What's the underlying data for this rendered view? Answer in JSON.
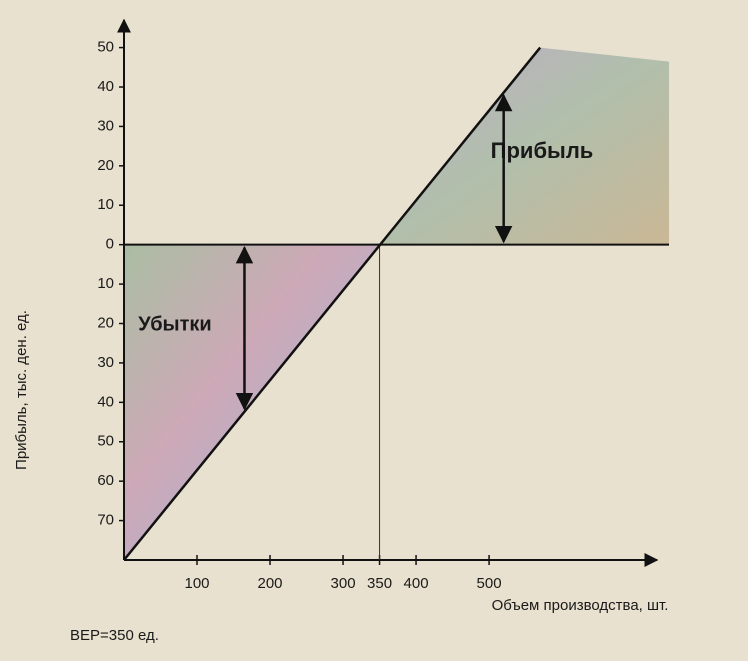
{
  "chart_data": {
    "type": "line",
    "y_label": "Прибыль, тыс. ден. ед.",
    "x_label": "Объем производства, шт.",
    "annotations": [
      "Прибыль",
      "Убытки",
      "BEP=350 ед."
    ],
    "x": [
      0,
      570
    ],
    "values": [
      -80,
      50
    ],
    "color": "#111111",
    "xlim": [
      0,
      730
    ],
    "ylim": [
      -80,
      57
    ],
    "xticks": [
      100,
      200,
      300,
      350,
      400,
      500
    ],
    "yticks": [
      50,
      40,
      30,
      20,
      10,
      0,
      {
        "value": -10,
        "label": "10"
      },
      {
        "value": -20,
        "label": "20"
      },
      {
        "value": -30,
        "label": "30"
      },
      {
        "value": -40,
        "label": "40"
      },
      {
        "value": -50,
        "label": "50"
      },
      {
        "value": -60,
        "label": "60"
      },
      {
        "value": -70,
        "label": "70"
      }
    ]
  }
}
